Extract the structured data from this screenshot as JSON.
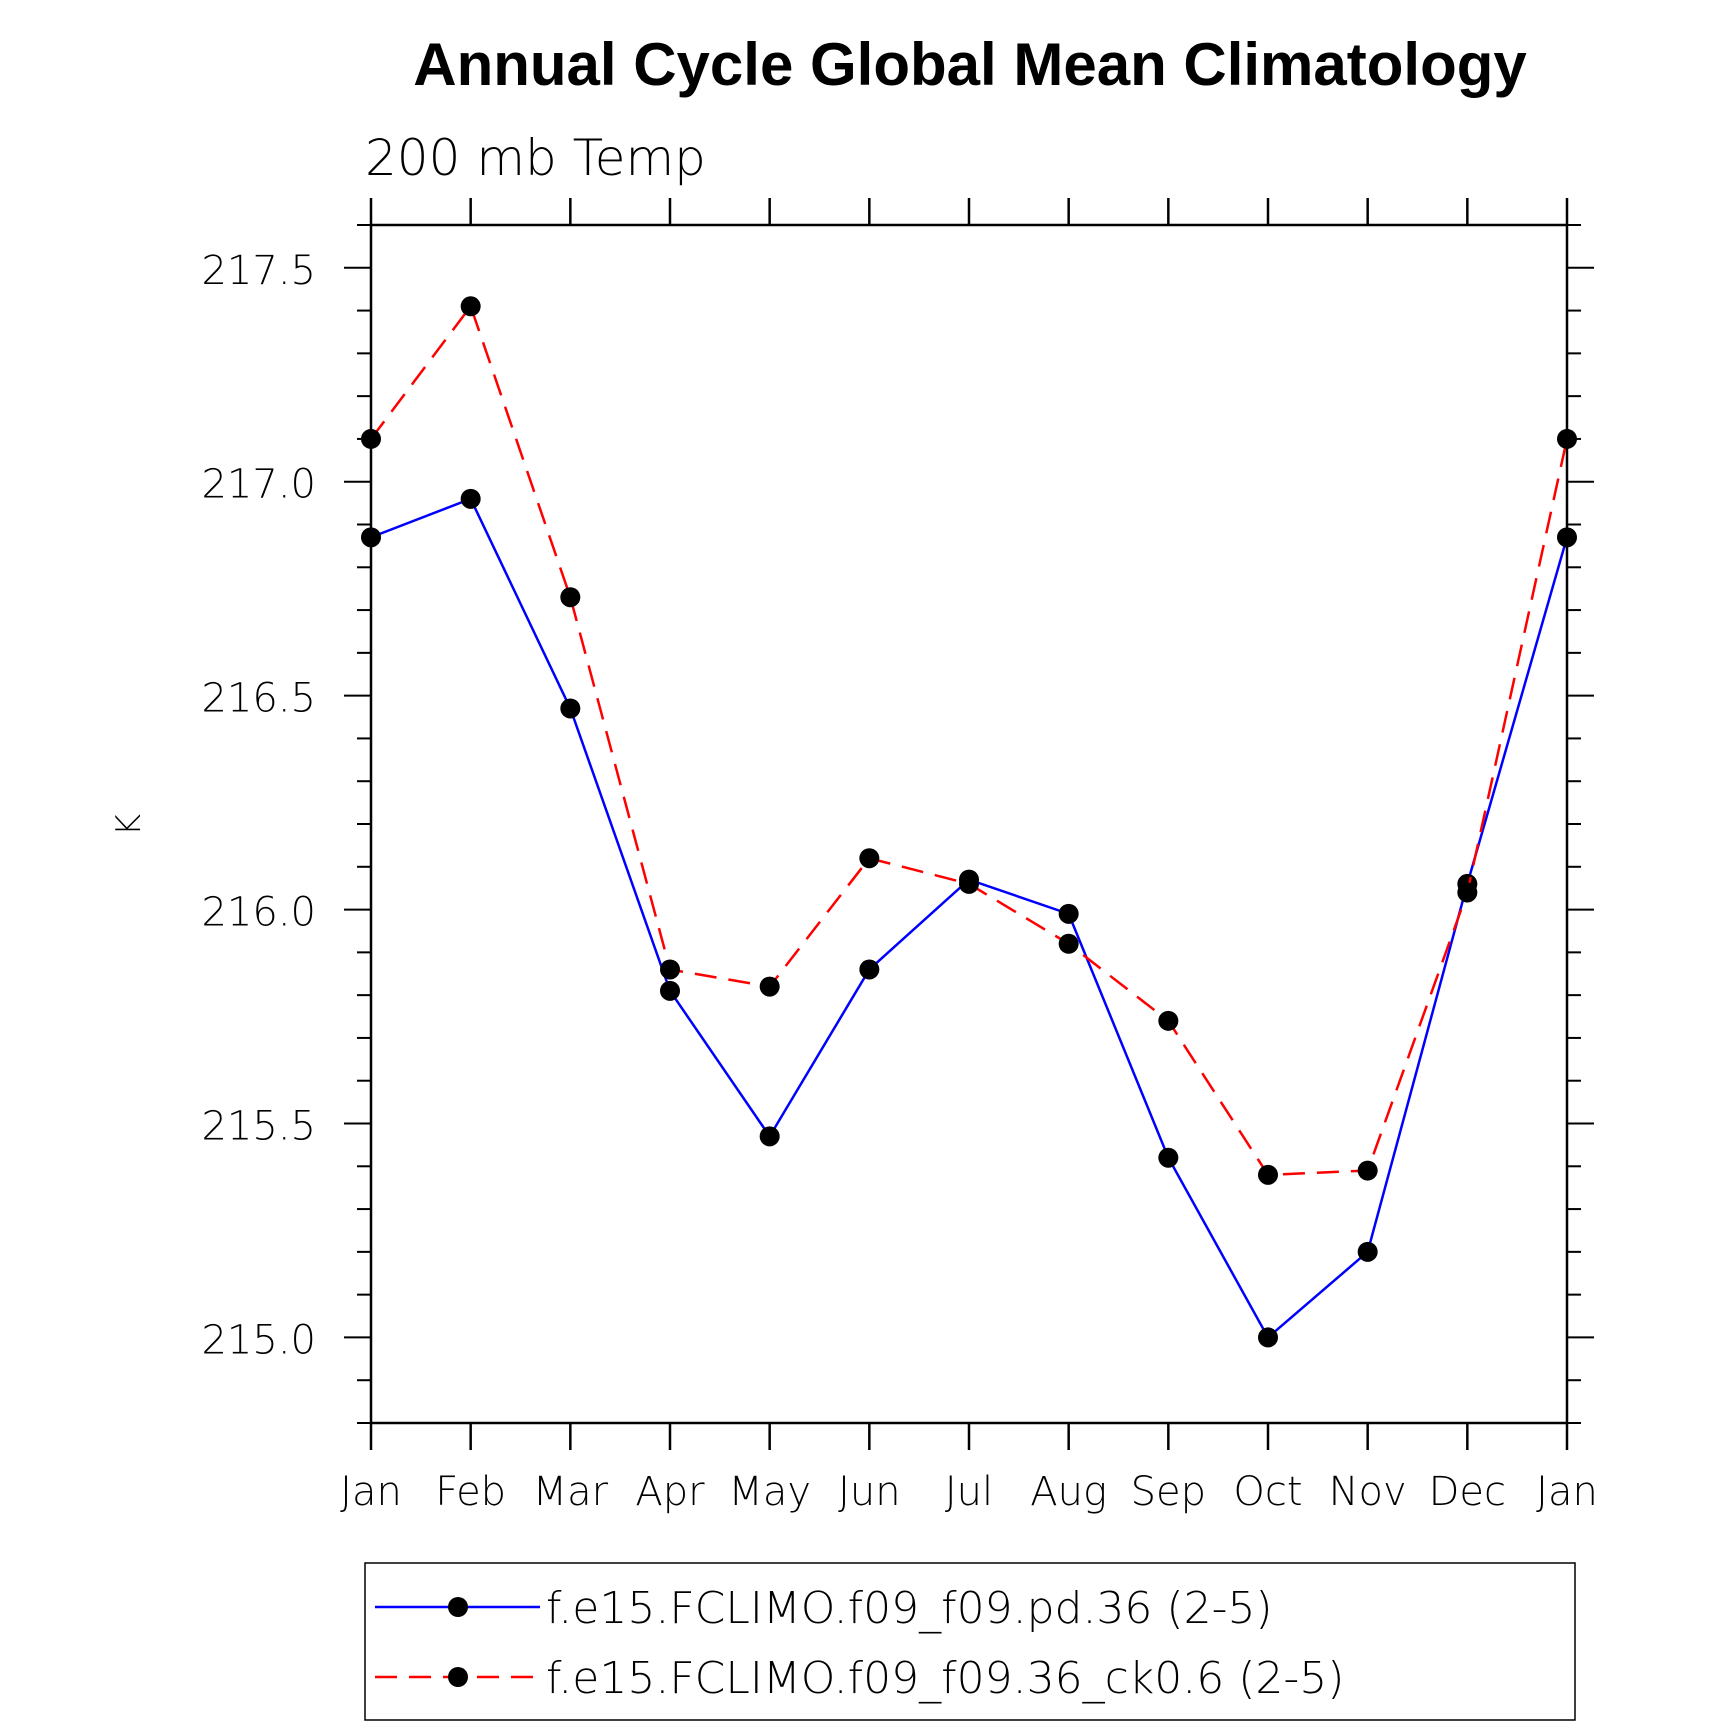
{
  "chart_data": {
    "type": "line",
    "title": "Annual Cycle Global Mean Climatology",
    "subtitle": "200 mb Temp",
    "xlabel": "",
    "ylabel": "K",
    "categories": [
      "Jan",
      "Feb",
      "Mar",
      "Apr",
      "May",
      "Jun",
      "Jul",
      "Aug",
      "Sep",
      "Oct",
      "Nov",
      "Dec",
      "Jan"
    ],
    "ylim": [
      214.8,
      217.6
    ],
    "yticks": [
      215.0,
      215.5,
      216.0,
      216.5,
      217.0,
      217.5
    ],
    "ytick_labels": [
      "215.0",
      "215.5",
      "216.0",
      "216.5",
      "217.0",
      "217.5"
    ],
    "grid": false,
    "legend_position": "bottom",
    "series": [
      {
        "name": "f.e15.FCLIMO.f09_f09.pd.36 (2-5)",
        "color": "#0000ff",
        "dash": "solid",
        "marker_color": "#000000",
        "values": [
          216.87,
          216.96,
          216.47,
          215.81,
          215.47,
          215.86,
          216.07,
          215.99,
          215.42,
          215.0,
          215.2,
          216.06,
          216.87
        ]
      },
      {
        "name": "f.e15.FCLIMO.f09_f09.36_ck0.6 (2-5)",
        "color": "#ff0000",
        "dash": "dashed",
        "marker_color": "#000000",
        "values": [
          217.1,
          217.41,
          216.73,
          215.86,
          215.82,
          216.12,
          216.06,
          215.92,
          215.74,
          215.38,
          215.39,
          216.04,
          217.1
        ]
      }
    ]
  }
}
